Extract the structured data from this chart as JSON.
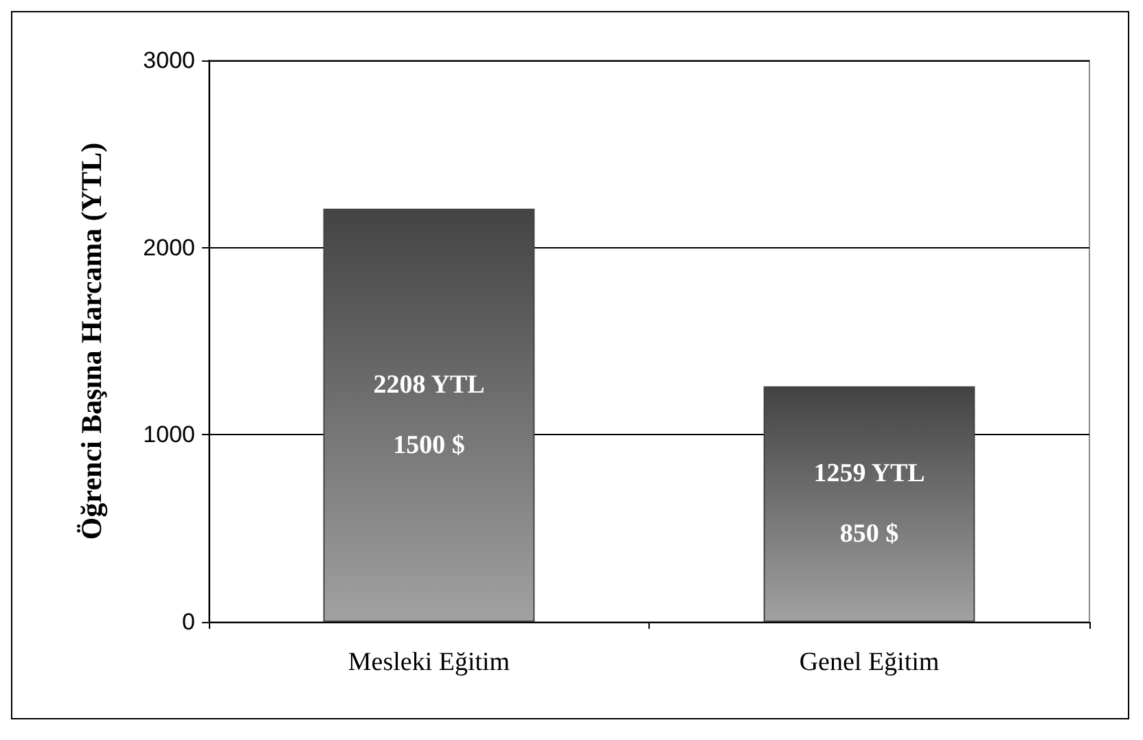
{
  "chart_data": {
    "type": "bar",
    "ylabel": "Öğrenci Başına Harcama (YTL)",
    "categories": [
      "Mesleki Eğitim",
      "Genel Eğitim"
    ],
    "values": [
      2208,
      1259
    ],
    "color": "#434343",
    "value_labels": [
      "2208 YTL\n\n1500 $",
      "1259 YTL\n\n850 $"
    ],
    "ylim": [
      0,
      3000
    ],
    "yticks": [
      0,
      1000,
      2000,
      3000
    ],
    "grid": "y"
  }
}
